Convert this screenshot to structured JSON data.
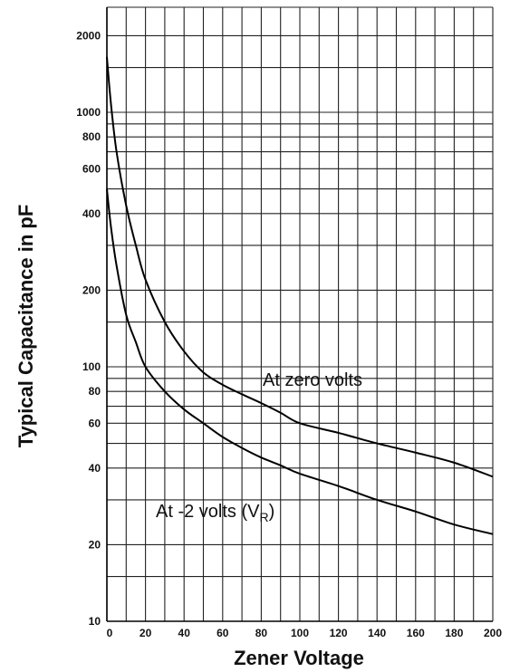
{
  "chart_data": {
    "type": "line",
    "title": "",
    "xlabel": "Zener Voltage",
    "ylabel": "Typical Capacitance in pF",
    "xlim": [
      0,
      200
    ],
    "ylim": [
      10,
      2500
    ],
    "yscale": "log",
    "grid": true,
    "x_tick_labels": [
      "0",
      "20",
      "40",
      "60",
      "80",
      "100",
      "120",
      "140",
      "160",
      "180",
      "200"
    ],
    "y_tick_labels": [
      "10",
      "20",
      "40",
      "60",
      "80",
      "100",
      "200",
      "400",
      "600",
      "800",
      "1000",
      "2000"
    ],
    "y_tick_values": [
      10,
      20,
      40,
      60,
      80,
      100,
      200,
      400,
      600,
      800,
      1000,
      2000
    ],
    "series": [
      {
        "name": "At zero volts",
        "x": [
          0,
          2,
          5,
          10,
          15,
          20,
          30,
          40,
          50,
          60,
          70,
          80,
          90,
          100,
          120,
          140,
          160,
          180,
          200
        ],
        "y": [
          1650,
          1100,
          700,
          430,
          300,
          220,
          150,
          115,
          95,
          85,
          78,
          72,
          66,
          60,
          55,
          50,
          46,
          42,
          37
        ]
      },
      {
        "name": "At -2 volts (VR)",
        "x": [
          0,
          2,
          5,
          10,
          15,
          20,
          30,
          40,
          50,
          60,
          70,
          80,
          90,
          100,
          120,
          140,
          160,
          180,
          200
        ],
        "y": [
          500,
          360,
          250,
          160,
          125,
          100,
          80,
          68,
          60,
          53,
          48,
          44,
          41,
          38,
          34,
          30,
          27,
          24,
          22
        ]
      }
    ],
    "annotations": [
      {
        "text": "At zero volts"
      },
      {
        "text": "At -2 volts (V",
        "subscript": "R",
        "suffix": ")"
      }
    ]
  }
}
